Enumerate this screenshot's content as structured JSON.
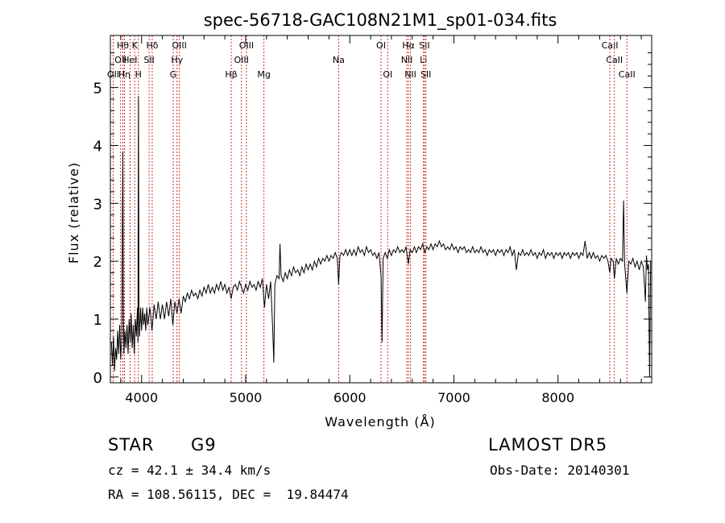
{
  "chart_data": {
    "type": "line",
    "title": "spec-56718-GAC108N21M1_sp01-034.fits",
    "xlabel": "Wavelength (Å)",
    "ylabel": "Flux (relative)",
    "xlim": [
      3700,
      8900
    ],
    "ylim": [
      -0.1,
      5.9
    ],
    "xticks": [
      4000,
      5000,
      6000,
      7000,
      8000
    ],
    "yticks": [
      0,
      1,
      2,
      3,
      4,
      5
    ],
    "grid": false,
    "line_color": "#000000",
    "marker_color": "#cc3333",
    "line_markers": [
      {
        "wl": 3727,
        "label": "OII",
        "row": 2
      },
      {
        "wl": 3798,
        "label": "OII",
        "row": 1
      },
      {
        "wl": 3820,
        "label": "Hθ",
        "row": 0
      },
      {
        "wl": 3835,
        "label": "Hη",
        "row": 2
      },
      {
        "wl": 3889,
        "label": "HeI",
        "row": 1
      },
      {
        "wl": 3934,
        "label": "K",
        "row": 0
      },
      {
        "wl": 3969,
        "label": "H",
        "row": 2
      },
      {
        "wl": 4072,
        "label": "SII",
        "row": 1
      },
      {
        "wl": 4102,
        "label": "Hδ",
        "row": 0
      },
      {
        "wl": 4304,
        "label": "G",
        "row": 2
      },
      {
        "wl": 4340,
        "label": "Hγ",
        "row": 1
      },
      {
        "wl": 4363,
        "label": "OIII",
        "row": 0
      },
      {
        "wl": 4861,
        "label": "Hβ",
        "row": 2
      },
      {
        "wl": 4959,
        "label": "OIII",
        "row": 1
      },
      {
        "wl": 5007,
        "label": "OIII",
        "row": 0
      },
      {
        "wl": 5175,
        "label": "Mg",
        "row": 2
      },
      {
        "wl": 5893,
        "label": "Na",
        "row": 1
      },
      {
        "wl": 6300,
        "label": "OI",
        "row": 0
      },
      {
        "wl": 6364,
        "label": "OI",
        "row": 2
      },
      {
        "wl": 6548,
        "label": "NII",
        "row": 1
      },
      {
        "wl": 6563,
        "label": "Hα",
        "row": 0
      },
      {
        "wl": 6583,
        "label": "NII",
        "row": 2
      },
      {
        "wl": 6708,
        "label": "Li",
        "row": 1
      },
      {
        "wl": 6717,
        "label": "SII",
        "row": 0
      },
      {
        "wl": 6731,
        "label": "SII",
        "row": 2
      },
      {
        "wl": 8498,
        "label": "CaII",
        "row": 0
      },
      {
        "wl": 8542,
        "label": "CaII",
        "row": 1
      },
      {
        "wl": 8662,
        "label": "CaII",
        "row": 2
      }
    ],
    "spectrum": [
      [
        3710,
        0.6
      ],
      [
        3720,
        0.2
      ],
      [
        3730,
        0.7
      ],
      [
        3740,
        0.1
      ],
      [
        3750,
        0.5
      ],
      [
        3760,
        0.3
      ],
      [
        3770,
        0.8
      ],
      [
        3780,
        0.4
      ],
      [
        3790,
        0.9
      ],
      [
        3800,
        0.3
      ],
      [
        3810,
        0.7
      ],
      [
        3815,
        2.6
      ],
      [
        3820,
        3.9
      ],
      [
        3825,
        1.2
      ],
      [
        3830,
        0.4
      ],
      [
        3840,
        0.8
      ],
      [
        3850,
        0.5
      ],
      [
        3860,
        0.9
      ],
      [
        3870,
        0.4
      ],
      [
        3880,
        1.0
      ],
      [
        3890,
        0.6
      ],
      [
        3900,
        1.1
      ],
      [
        3910,
        0.5
      ],
      [
        3920,
        0.9
      ],
      [
        3930,
        0.4
      ],
      [
        3940,
        1.0
      ],
      [
        3950,
        0.7
      ],
      [
        3960,
        1.2
      ],
      [
        3965,
        0.6
      ],
      [
        3970,
        4.85
      ],
      [
        3975,
        1.2
      ],
      [
        3980,
        0.7
      ],
      [
        3990,
        1.2
      ],
      [
        4000,
        0.8
      ],
      [
        4010,
        1.2
      ],
      [
        4020,
        0.9
      ],
      [
        4030,
        1.1
      ],
      [
        4040,
        0.8
      ],
      [
        4050,
        1.2
      ],
      [
        4060,
        0.9
      ],
      [
        4080,
        1.2
      ],
      [
        4100,
        0.8
      ],
      [
        4120,
        1.25
      ],
      [
        4140,
        1.0
      ],
      [
        4160,
        1.3
      ],
      [
        4180,
        1.0
      ],
      [
        4200,
        1.25
      ],
      [
        4220,
        1.0
      ],
      [
        4240,
        1.3
      ],
      [
        4260,
        1.05
      ],
      [
        4280,
        1.35
      ],
      [
        4300,
        0.9
      ],
      [
        4320,
        1.3
      ],
      [
        4340,
        1.1
      ],
      [
        4360,
        1.35
      ],
      [
        4380,
        1.1
      ],
      [
        4400,
        1.4
      ],
      [
        4420,
        1.3
      ],
      [
        4440,
        1.45
      ],
      [
        4460,
        1.35
      ],
      [
        4480,
        1.5
      ],
      [
        4500,
        1.4
      ],
      [
        4520,
        1.45
      ],
      [
        4540,
        1.35
      ],
      [
        4560,
        1.5
      ],
      [
        4580,
        1.4
      ],
      [
        4600,
        1.55
      ],
      [
        4620,
        1.45
      ],
      [
        4640,
        1.6
      ],
      [
        4660,
        1.45
      ],
      [
        4680,
        1.55
      ],
      [
        4700,
        1.45
      ],
      [
        4720,
        1.6
      ],
      [
        4740,
        1.5
      ],
      [
        4760,
        1.65
      ],
      [
        4780,
        1.5
      ],
      [
        4800,
        1.6
      ],
      [
        4820,
        1.45
      ],
      [
        4840,
        1.55
      ],
      [
        4860,
        1.35
      ],
      [
        4880,
        1.55
      ],
      [
        4900,
        1.6
      ],
      [
        4920,
        1.5
      ],
      [
        4940,
        1.65
      ],
      [
        4960,
        1.55
      ],
      [
        4980,
        1.45
      ],
      [
        5000,
        1.6
      ],
      [
        5020,
        1.5
      ],
      [
        5040,
        1.65
      ],
      [
        5060,
        1.55
      ],
      [
        5080,
        1.6
      ],
      [
        5100,
        1.5
      ],
      [
        5120,
        1.65
      ],
      [
        5140,
        1.55
      ],
      [
        5160,
        1.7
      ],
      [
        5180,
        1.2
      ],
      [
        5200,
        1.6
      ],
      [
        5220,
        1.35
      ],
      [
        5240,
        1.65
      ],
      [
        5260,
        0.8
      ],
      [
        5270,
        0.25
      ],
      [
        5280,
        1.6
      ],
      [
        5300,
        1.75
      ],
      [
        5320,
        1.7
      ],
      [
        5330,
        2.3
      ],
      [
        5340,
        1.75
      ],
      [
        5360,
        1.65
      ],
      [
        5380,
        1.8
      ],
      [
        5400,
        1.7
      ],
      [
        5420,
        1.85
      ],
      [
        5440,
        1.75
      ],
      [
        5460,
        1.9
      ],
      [
        5480,
        1.8
      ],
      [
        5500,
        1.85
      ],
      [
        5520,
        1.75
      ],
      [
        5540,
        1.9
      ],
      [
        5560,
        1.8
      ],
      [
        5580,
        1.95
      ],
      [
        5600,
        1.85
      ],
      [
        5620,
        1.95
      ],
      [
        5640,
        1.85
      ],
      [
        5660,
        2.0
      ],
      [
        5680,
        1.9
      ],
      [
        5700,
        2.05
      ],
      [
        5720,
        1.95
      ],
      [
        5740,
        2.05
      ],
      [
        5760,
        2.0
      ],
      [
        5780,
        2.1
      ],
      [
        5800,
        2.0
      ],
      [
        5820,
        2.1
      ],
      [
        5840,
        2.05
      ],
      [
        5860,
        2.15
      ],
      [
        5880,
        2.05
      ],
      [
        5893,
        1.6
      ],
      [
        5905,
        2.1
      ],
      [
        5920,
        2.15
      ],
      [
        5940,
        2.1
      ],
      [
        5960,
        2.2
      ],
      [
        5980,
        2.1
      ],
      [
        6000,
        2.2
      ],
      [
        6020,
        2.1
      ],
      [
        6040,
        2.2
      ],
      [
        6060,
        2.1
      ],
      [
        6080,
        2.25
      ],
      [
        6100,
        2.15
      ],
      [
        6120,
        2.2
      ],
      [
        6140,
        2.1
      ],
      [
        6160,
        2.25
      ],
      [
        6180,
        2.15
      ],
      [
        6200,
        2.2
      ],
      [
        6220,
        2.1
      ],
      [
        6240,
        2.15
      ],
      [
        6260,
        2.05
      ],
      [
        6280,
        2.15
      ],
      [
        6300,
        1.75
      ],
      [
        6310,
        0.6
      ],
      [
        6320,
        2.05
      ],
      [
        6340,
        2.15
      ],
      [
        6360,
        2.05
      ],
      [
        6380,
        2.2
      ],
      [
        6400,
        2.1
      ],
      [
        6420,
        2.2
      ],
      [
        6440,
        2.15
      ],
      [
        6460,
        2.25
      ],
      [
        6480,
        2.15
      ],
      [
        6500,
        2.2
      ],
      [
        6520,
        2.15
      ],
      [
        6540,
        2.25
      ],
      [
        6563,
        1.95
      ],
      [
        6580,
        2.2
      ],
      [
        6600,
        2.15
      ],
      [
        6620,
        2.25
      ],
      [
        6640,
        2.15
      ],
      [
        6660,
        2.25
      ],
      [
        6680,
        2.2
      ],
      [
        6700,
        2.3
      ],
      [
        6720,
        2.15
      ],
      [
        6740,
        2.25
      ],
      [
        6760,
        2.2
      ],
      [
        6780,
        2.3
      ],
      [
        6800,
        2.2
      ],
      [
        6820,
        2.3
      ],
      [
        6840,
        2.25
      ],
      [
        6860,
        2.35
      ],
      [
        6880,
        2.25
      ],
      [
        6900,
        2.3
      ],
      [
        6920,
        2.2
      ],
      [
        6940,
        2.25
      ],
      [
        6960,
        2.2
      ],
      [
        6980,
        2.3
      ],
      [
        7000,
        2.2
      ],
      [
        7020,
        2.25
      ],
      [
        7040,
        2.15
      ],
      [
        7060,
        2.25
      ],
      [
        7080,
        2.2
      ],
      [
        7100,
        2.25
      ],
      [
        7120,
        2.15
      ],
      [
        7140,
        2.2
      ],
      [
        7160,
        2.15
      ],
      [
        7180,
        2.25
      ],
      [
        7200,
        2.15
      ],
      [
        7220,
        2.2
      ],
      [
        7240,
        2.15
      ],
      [
        7260,
        2.25
      ],
      [
        7280,
        2.15
      ],
      [
        7300,
        2.2
      ],
      [
        7320,
        2.1
      ],
      [
        7340,
        2.2
      ],
      [
        7360,
        2.15
      ],
      [
        7380,
        2.2
      ],
      [
        7400,
        2.1
      ],
      [
        7420,
        2.2
      ],
      [
        7440,
        2.15
      ],
      [
        7460,
        2.2
      ],
      [
        7480,
        2.1
      ],
      [
        7500,
        2.2
      ],
      [
        7520,
        2.15
      ],
      [
        7540,
        2.25
      ],
      [
        7560,
        2.1
      ],
      [
        7580,
        2.2
      ],
      [
        7600,
        1.85
      ],
      [
        7620,
        2.15
      ],
      [
        7640,
        2.1
      ],
      [
        7660,
        2.2
      ],
      [
        7680,
        2.1
      ],
      [
        7700,
        2.15
      ],
      [
        7720,
        2.1
      ],
      [
        7740,
        2.2
      ],
      [
        7760,
        2.1
      ],
      [
        7780,
        2.15
      ],
      [
        7800,
        2.05
      ],
      [
        7820,
        2.15
      ],
      [
        7840,
        2.1
      ],
      [
        7860,
        2.2
      ],
      [
        7880,
        2.05
      ],
      [
        7900,
        2.15
      ],
      [
        7920,
        2.1
      ],
      [
        7940,
        2.15
      ],
      [
        7960,
        2.05
      ],
      [
        7980,
        2.15
      ],
      [
        8000,
        2.1
      ],
      [
        8020,
        2.15
      ],
      [
        8040,
        2.05
      ],
      [
        8060,
        2.15
      ],
      [
        8080,
        2.1
      ],
      [
        8100,
        2.15
      ],
      [
        8120,
        2.05
      ],
      [
        8140,
        2.15
      ],
      [
        8160,
        2.1
      ],
      [
        8180,
        2.15
      ],
      [
        8200,
        2.05
      ],
      [
        8220,
        2.15
      ],
      [
        8240,
        2.1
      ],
      [
        8260,
        2.35
      ],
      [
        8280,
        2.05
      ],
      [
        8300,
        2.15
      ],
      [
        8320,
        2.05
      ],
      [
        8340,
        2.15
      ],
      [
        8360,
        2.05
      ],
      [
        8380,
        2.1
      ],
      [
        8400,
        2.0
      ],
      [
        8420,
        2.1
      ],
      [
        8440,
        2.05
      ],
      [
        8460,
        2.1
      ],
      [
        8480,
        2.0
      ],
      [
        8498,
        1.8
      ],
      [
        8510,
        2.05
      ],
      [
        8530,
        2.0
      ],
      [
        8542,
        1.7
      ],
      [
        8560,
        2.05
      ],
      [
        8580,
        1.95
      ],
      [
        8600,
        2.05
      ],
      [
        8620,
        2.0
      ],
      [
        8630,
        3.05
      ],
      [
        8640,
        1.95
      ],
      [
        8662,
        1.45
      ],
      [
        8680,
        2.0
      ],
      [
        8700,
        1.95
      ],
      [
        8720,
        2.05
      ],
      [
        8740,
        1.9
      ],
      [
        8760,
        2.0
      ],
      [
        8780,
        1.85
      ],
      [
        8800,
        2.0
      ],
      [
        8820,
        1.9
      ],
      [
        8840,
        1.3
      ],
      [
        8850,
        2.1
      ],
      [
        8860,
        1.85
      ],
      [
        8870,
        1.95
      ],
      [
        8880,
        0.0
      ],
      [
        8890,
        2.0
      ]
    ]
  },
  "info": {
    "obj_class": "STAR",
    "subclass": "G9",
    "survey": "LAMOST DR5",
    "redshift": "cz = 42.1 ± 34.4 km/s",
    "obs_date": "Obs-Date: 20140301",
    "coords": "RA = 108.56115, DEC =  19.84474"
  }
}
